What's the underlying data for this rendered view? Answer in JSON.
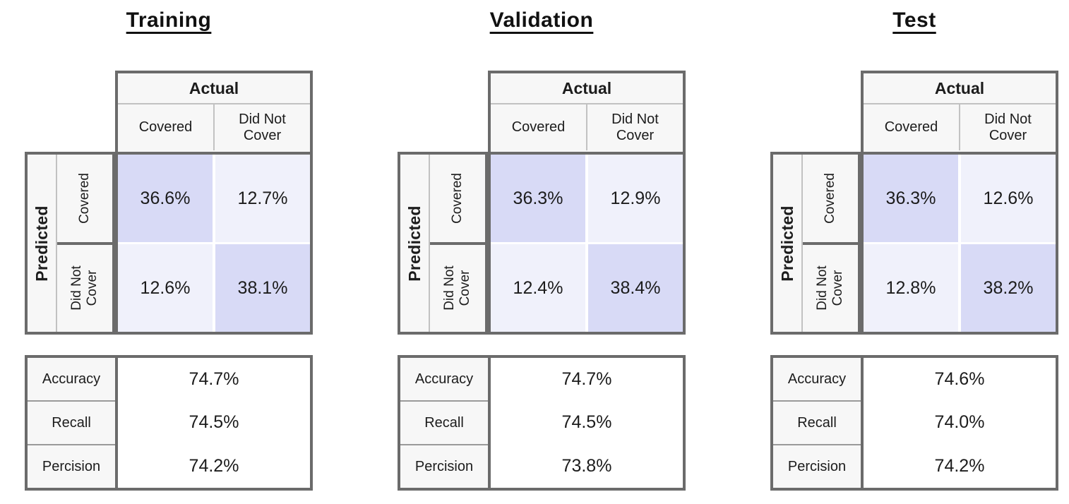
{
  "labels": {
    "actual": "Actual",
    "predicted": "Predicted",
    "covered": "Covered",
    "did_not_cover": "Did Not Cover"
  },
  "colors": {
    "diagonal_cell": "#d8daf6",
    "off_diagonal_cell": "#f0f1fb",
    "header_bg": "#f7f7f7",
    "border": "#6b6b6b"
  },
  "sections": [
    {
      "title": "Training",
      "matrix": {
        "tp": "36.6%",
        "fp": "12.7%",
        "fn": "12.6%",
        "tn": "38.1%"
      },
      "metrics": [
        {
          "label": "Accuracy",
          "value": "74.7%"
        },
        {
          "label": "Recall",
          "value": "74.5%"
        },
        {
          "label": "Percision",
          "value": "74.2%"
        }
      ]
    },
    {
      "title": "Validation",
      "matrix": {
        "tp": "36.3%",
        "fp": "12.9%",
        "fn": "12.4%",
        "tn": "38.4%"
      },
      "metrics": [
        {
          "label": "Accuracy",
          "value": "74.7%"
        },
        {
          "label": "Recall",
          "value": "74.5%"
        },
        {
          "label": "Percision",
          "value": "73.8%"
        }
      ]
    },
    {
      "title": "Test",
      "matrix": {
        "tp": "36.3%",
        "fp": "12.6%",
        "fn": "12.8%",
        "tn": "38.2%"
      },
      "metrics": [
        {
          "label": "Accuracy",
          "value": "74.6%"
        },
        {
          "label": "Recall",
          "value": "74.0%"
        },
        {
          "label": "Percision",
          "value": "74.2%"
        }
      ]
    }
  ],
  "chart_data": [
    {
      "type": "heatmap",
      "title": "Training",
      "xlabel": "Actual",
      "ylabel": "Predicted",
      "categories": [
        "Covered",
        "Did Not Cover"
      ],
      "matrix_percent": [
        [
          36.6,
          12.7
        ],
        [
          12.6,
          38.1
        ]
      ],
      "metrics": {
        "Accuracy": 74.7,
        "Recall": 74.5,
        "Percision": 74.2
      }
    },
    {
      "type": "heatmap",
      "title": "Validation",
      "xlabel": "Actual",
      "ylabel": "Predicted",
      "categories": [
        "Covered",
        "Did Not Cover"
      ],
      "matrix_percent": [
        [
          36.3,
          12.9
        ],
        [
          12.4,
          38.4
        ]
      ],
      "metrics": {
        "Accuracy": 74.7,
        "Recall": 74.5,
        "Percision": 73.8
      }
    },
    {
      "type": "heatmap",
      "title": "Test",
      "xlabel": "Actual",
      "ylabel": "Predicted",
      "categories": [
        "Covered",
        "Did Not Cover"
      ],
      "matrix_percent": [
        [
          36.3,
          12.6
        ],
        [
          12.8,
          38.2
        ]
      ],
      "metrics": {
        "Accuracy": 74.6,
        "Recall": 74.0,
        "Percision": 74.2
      }
    }
  ]
}
